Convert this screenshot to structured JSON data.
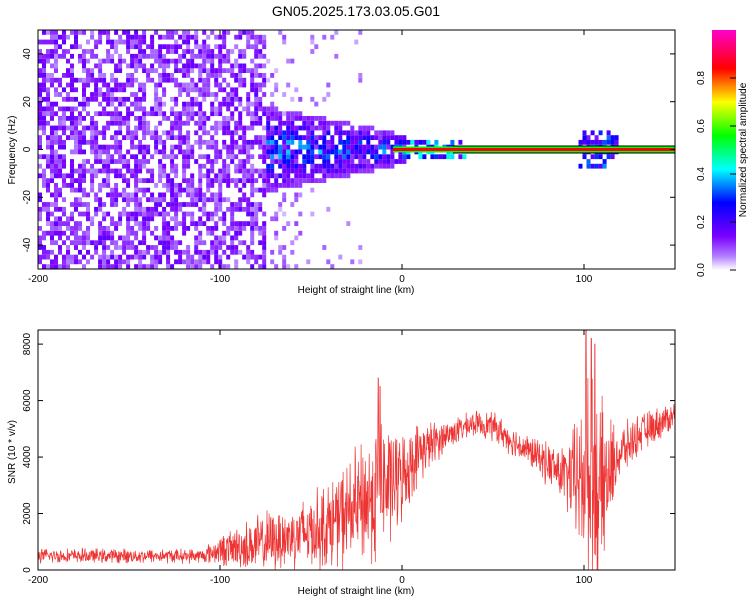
{
  "title": "GN05.2025.173.03.05.G01",
  "chart_data": [
    {
      "type": "heatmap",
      "title": "",
      "xlabel": "Height of straight line (km)",
      "ylabel": "Frequency (Hz)",
      "xlim": [
        -200,
        150
      ],
      "ylim": [
        -50,
        50
      ],
      "x_ticks": [
        -200,
        -100,
        0,
        100
      ],
      "y_ticks": [
        -40,
        -20,
        0,
        20,
        40
      ],
      "colorbar": {
        "label": "Normalized spectral amplitude",
        "range": [
          0,
          1
        ],
        "ticks": [
          0.0,
          0.2,
          0.4,
          0.6,
          0.8
        ],
        "tick_labels": [
          "0.0",
          "0.2",
          "0.4",
          "0.6",
          "0.8"
        ],
        "colormap": [
          "#ffffff",
          "#7a00ff",
          "#0000ff",
          "#00ffff",
          "#00ff00",
          "#ffff00",
          "#ff0000",
          "#ff00ff"
        ]
      },
      "regions": [
        {
          "name": "noise_floor",
          "x_from": -200,
          "x_to": -75,
          "freq_spread": 50,
          "amplitude": 0.12
        },
        {
          "name": "transition",
          "x_from": -75,
          "x_to": -55,
          "freq_spread": 50,
          "amplitude": 0.06
        },
        {
          "name": "signal_onset",
          "x_from": -75,
          "x_to": 0,
          "freq_spread_start": 18,
          "freq_spread_end": 6,
          "amplitude": 0.4
        },
        {
          "name": "stable_tone",
          "x_from": 0,
          "x_to": 150,
          "freq": 0,
          "amplitude": 0.95
        },
        {
          "name": "reflection_burst",
          "x_from": 95,
          "x_to": 118,
          "freq_spread": 8,
          "amplitude": 0.35
        }
      ]
    },
    {
      "type": "line",
      "title": "",
      "xlabel": "Height of straight line (km)",
      "ylabel": "SNR (10 * v/v)",
      "xlim": [
        -200,
        150
      ],
      "ylim": [
        0,
        8500
      ],
      "x_ticks": [
        -200,
        -100,
        0,
        100
      ],
      "y_ticks": [
        0,
        2000,
        4000,
        6000,
        8000
      ],
      "series_color": "#ee3333",
      "envelope": [
        {
          "x": -200,
          "mean": 500,
          "spread": 300
        },
        {
          "x": -150,
          "mean": 500,
          "spread": 300
        },
        {
          "x": -110,
          "mean": 500,
          "spread": 300
        },
        {
          "x": -100,
          "mean": 700,
          "spread": 600
        },
        {
          "x": -80,
          "mean": 900,
          "spread": 1200
        },
        {
          "x": -60,
          "mean": 1200,
          "spread": 1400
        },
        {
          "x": -40,
          "mean": 1600,
          "spread": 1800
        },
        {
          "x": -25,
          "mean": 2200,
          "spread": 2400
        },
        {
          "x": -12,
          "mean": 2800,
          "spread": 3000
        },
        {
          "x": 0,
          "mean": 3300,
          "spread": 1800
        },
        {
          "x": 10,
          "mean": 4200,
          "spread": 1200
        },
        {
          "x": 25,
          "mean": 4800,
          "spread": 600
        },
        {
          "x": 40,
          "mean": 5200,
          "spread": 500
        },
        {
          "x": 50,
          "mean": 5100,
          "spread": 600
        },
        {
          "x": 60,
          "mean": 4600,
          "spread": 600
        },
        {
          "x": 75,
          "mean": 4000,
          "spread": 700
        },
        {
          "x": 90,
          "mean": 3300,
          "spread": 1300
        },
        {
          "x": 98,
          "mean": 3200,
          "spread": 3000
        },
        {
          "x": 103,
          "mean": 3000,
          "spread": 4500
        },
        {
          "x": 110,
          "mean": 2800,
          "spread": 3500
        },
        {
          "x": 118,
          "mean": 4000,
          "spread": 1200
        },
        {
          "x": 130,
          "mean": 4800,
          "spread": 800
        },
        {
          "x": 150,
          "mean": 5500,
          "spread": 600
        }
      ],
      "peaks": [
        {
          "x": -13,
          "y": 6800
        },
        {
          "x": -12,
          "y": 6500
        },
        {
          "x": 101,
          "y": 8500
        },
        {
          "x": 104,
          "y": 8200
        },
        {
          "x": 106,
          "y": 8000
        }
      ]
    }
  ]
}
